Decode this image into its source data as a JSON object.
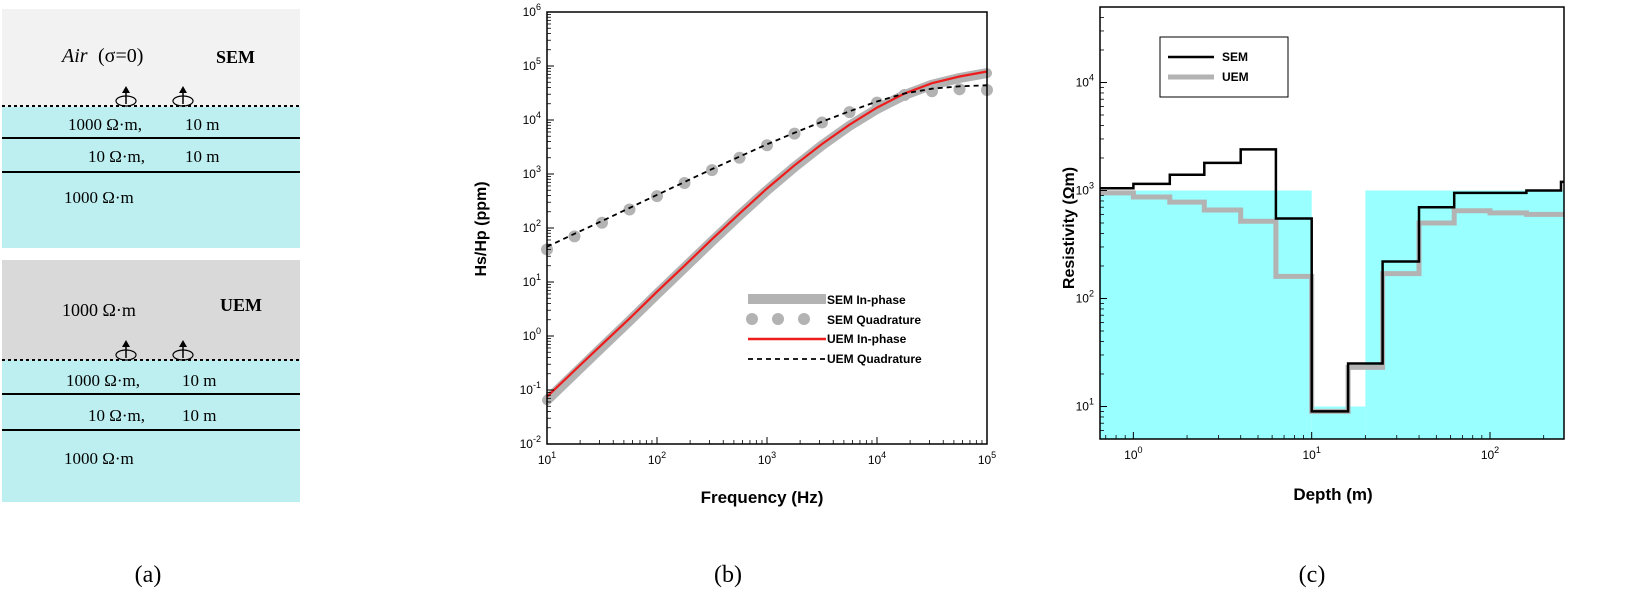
{
  "panel_a": {
    "caption": "(a)",
    "sem": {
      "tag": "SEM",
      "air_label": "Air",
      "sigma_label": "(σ=0)",
      "layers": [
        {
          "resistivity": "1000 Ω·m,",
          "thickness": "10 m"
        },
        {
          "resistivity": "10 Ω·m,",
          "thickness": "10 m"
        },
        {
          "resistivity": "1000 Ω·m",
          "thickness": ""
        }
      ]
    },
    "uem": {
      "tag": "UEM",
      "top_label": "1000 Ω·m",
      "layers": [
        {
          "resistivity": "1000 Ω·m,",
          "thickness": "10 m"
        },
        {
          "resistivity": "10 Ω·m,",
          "thickness": "10 m"
        },
        {
          "resistivity": "1000 Ω·m",
          "thickness": ""
        }
      ]
    },
    "colors": {
      "sky": "#f2f2f2",
      "water": "#d9d9d9",
      "ground": "#bdeef0"
    }
  },
  "chart_data": [
    {
      "id": "b",
      "caption": "(b)",
      "type": "line",
      "scale": "log-log",
      "xlabel": "Frequency (Hz)",
      "ylabel": "Hs/Hp (ppm)",
      "xlim": [
        10,
        100000
      ],
      "ylim": [
        0.01,
        1000000
      ],
      "xticks": [
        {
          "base": "10",
          "exp": "1"
        },
        {
          "base": "10",
          "exp": "2"
        },
        {
          "base": "10",
          "exp": "3"
        },
        {
          "base": "10",
          "exp": "4"
        },
        {
          "base": "10",
          "exp": "5"
        }
      ],
      "yticks": [
        {
          "base": "10",
          "exp": "-2"
        },
        {
          "base": "10",
          "exp": "-1"
        },
        {
          "base": "10",
          "exp": "0"
        },
        {
          "base": "10",
          "exp": "1"
        },
        {
          "base": "10",
          "exp": "2"
        },
        {
          "base": "10",
          "exp": "3"
        },
        {
          "base": "10",
          "exp": "4"
        },
        {
          "base": "10",
          "exp": "5"
        },
        {
          "base": "10",
          "exp": "6"
        }
      ],
      "legend": {
        "position": "center-right"
      },
      "series": [
        {
          "name": "SEM In-phase",
          "style": "thick-line",
          "color": "#b3b3b3",
          "x": [
            10,
            17.8,
            31.6,
            56.2,
            100,
            178,
            316,
            562,
            1000,
            1778,
            3162,
            5623,
            10000,
            17783,
            31623,
            56234,
            100000
          ],
          "y": [
            0.065,
            0.2,
            0.62,
            1.9,
            6,
            18.5,
            57,
            172,
            500,
            1350,
            3400,
            7800,
            16000,
            29000,
            45000,
            60000,
            74000
          ]
        },
        {
          "name": "SEM Quadrature",
          "style": "dots",
          "color": "#b3b3b3",
          "x": [
            10,
            17.8,
            31.6,
            56.2,
            100,
            178,
            316,
            562,
            1000,
            1778,
            3162,
            5623,
            10000,
            17783,
            31623,
            56234,
            100000
          ],
          "y": [
            40,
            70,
            125,
            220,
            390,
            680,
            1180,
            2000,
            3400,
            5600,
            9000,
            14000,
            21000,
            29000,
            34000,
            37000,
            36000
          ]
        },
        {
          "name": "UEM In-phase",
          "style": "line",
          "color": "#ee1c1c",
          "x": [
            10,
            17.8,
            31.6,
            56.2,
            100,
            178,
            316,
            562,
            1000,
            1778,
            3162,
            5623,
            10000,
            17783,
            31623,
            56234,
            100000
          ],
          "y": [
            0.075,
            0.23,
            0.7,
            2.1,
            6.6,
            20,
            62,
            185,
            540,
            1450,
            3600,
            8200,
            17000,
            31000,
            48000,
            64000,
            79000
          ]
        },
        {
          "name": "UEM Quadrature",
          "style": "dashed",
          "color": "#000000",
          "x": [
            10,
            17.8,
            31.6,
            56.2,
            100,
            178,
            316,
            562,
            1000,
            1778,
            3162,
            5623,
            10000,
            17783,
            31623,
            56234,
            100000
          ],
          "y": [
            45,
            78,
            135,
            235,
            410,
            710,
            1230,
            2100,
            3550,
            5800,
            9300,
            14500,
            22000,
            31000,
            38000,
            42000,
            44000
          ]
        }
      ]
    },
    {
      "id": "c",
      "caption": "(c)",
      "type": "line",
      "scale": "log-log",
      "xlabel": "Depth (m)",
      "ylabel": "Resistivity (Ωm)",
      "xlim": [
        0.65,
        260
      ],
      "ylim": [
        5,
        50000
      ],
      "xticks": [
        {
          "base": "10",
          "exp": "0",
          "value": 1
        },
        {
          "base": "10",
          "exp": "1",
          "value": 10
        },
        {
          "base": "10",
          "exp": "2",
          "value": 100
        }
      ],
      "yticks": [
        {
          "base": "10",
          "exp": "1",
          "value": 10
        },
        {
          "base": "10",
          "exp": "2",
          "value": 100
        },
        {
          "base": "10",
          "exp": "3",
          "value": 1000
        },
        {
          "base": "10",
          "exp": "4",
          "value": 10000
        }
      ],
      "legend": {
        "position": "top-left"
      },
      "true_model": {
        "color": "#99ffff",
        "layers": [
          {
            "from": 0.65,
            "to": 10,
            "resistivity": 1000
          },
          {
            "from": 10,
            "to": 20,
            "resistivity": 10
          },
          {
            "from": 20,
            "to": 260,
            "resistivity": 1000
          }
        ]
      },
      "series": [
        {
          "name": "SEM",
          "color": "#000000",
          "style": "step",
          "depth_edges": [
            0.65,
            1,
            1.6,
            2.5,
            4,
            6.3,
            10,
            16,
            25,
            40,
            63,
            100,
            160,
            250,
            260
          ],
          "resistivity": [
            1050,
            1150,
            1400,
            1800,
            2400,
            550,
            9,
            25,
            220,
            700,
            950,
            950,
            1000,
            1200
          ]
        },
        {
          "name": "UEM",
          "color": "#b3b3b3",
          "style": "step",
          "depth_edges": [
            0.65,
            1,
            1.6,
            2.5,
            4,
            6.3,
            10,
            16,
            25,
            40,
            63,
            100,
            160,
            250,
            260
          ],
          "resistivity": [
            950,
            870,
            780,
            660,
            520,
            160,
            9,
            23,
            170,
            500,
            650,
            620,
            600,
            600
          ]
        }
      ]
    }
  ]
}
